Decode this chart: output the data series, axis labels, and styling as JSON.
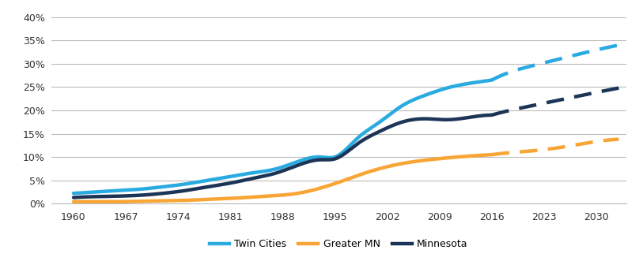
{
  "background_color": "#ffffff",
  "grid_color": "#bbbbbb",
  "ylim": [
    0,
    0.42
  ],
  "yticks": [
    0.0,
    0.05,
    0.1,
    0.15,
    0.2,
    0.25,
    0.3,
    0.35,
    0.4
  ],
  "ytick_labels": [
    "0%",
    "5%",
    "10%",
    "15%",
    "20%",
    "25%",
    "30%",
    "35%",
    "40%"
  ],
  "xticks": [
    1960,
    1967,
    1974,
    1981,
    1988,
    1995,
    2002,
    2009,
    2016,
    2023,
    2030
  ],
  "xlim": [
    1957,
    2034
  ],
  "series": {
    "twin_cities": {
      "label": "Twin Cities",
      "color": "#29ABE2",
      "linewidth": 3.2,
      "solid_x": [
        1960,
        1963,
        1966,
        1969,
        1972,
        1975,
        1978,
        1981,
        1984,
        1987,
        1990,
        1993,
        1995,
        1998,
        2001,
        2004,
        2007,
        2010,
        2013,
        2016
      ],
      "solid_y": [
        0.022,
        0.025,
        0.028,
        0.031,
        0.036,
        0.042,
        0.05,
        0.058,
        0.066,
        0.074,
        0.09,
        0.1,
        0.1,
        0.14,
        0.175,
        0.21,
        0.232,
        0.248,
        0.258,
        0.265
      ],
      "dash_x": [
        2016,
        2019,
        2022,
        2025,
        2028,
        2033
      ],
      "dash_y": [
        0.265,
        0.285,
        0.298,
        0.31,
        0.322,
        0.34
      ]
    },
    "greater_mn": {
      "label": "Greater MN",
      "color": "#F7A535",
      "linewidth": 3.2,
      "solid_x": [
        1960,
        1963,
        1966,
        1969,
        1972,
        1975,
        1978,
        1981,
        1984,
        1987,
        1990,
        1993,
        1995,
        1998,
        2001,
        2004,
        2007,
        2010,
        2013,
        2016
      ],
      "solid_y": [
        0.004,
        0.004,
        0.004,
        0.005,
        0.006,
        0.007,
        0.009,
        0.011,
        0.014,
        0.017,
        0.022,
        0.033,
        0.043,
        0.06,
        0.075,
        0.086,
        0.093,
        0.098,
        0.102,
        0.105
      ],
      "dash_x": [
        2016,
        2019,
        2022,
        2025,
        2028,
        2033
      ],
      "dash_y": [
        0.105,
        0.11,
        0.114,
        0.12,
        0.128,
        0.138
      ]
    },
    "minnesota": {
      "label": "Minnesota",
      "color": "#1C3557",
      "linewidth": 3.2,
      "solid_x": [
        1960,
        1963,
        1966,
        1969,
        1972,
        1975,
        1978,
        1981,
        1984,
        1987,
        1990,
        1993,
        1995,
        1998,
        2001,
        2004,
        2007,
        2010,
        2013,
        2016
      ],
      "solid_y": [
        0.013,
        0.015,
        0.016,
        0.018,
        0.022,
        0.028,
        0.036,
        0.044,
        0.054,
        0.065,
        0.082,
        0.094,
        0.096,
        0.128,
        0.155,
        0.175,
        0.182,
        0.18,
        0.185,
        0.19
      ],
      "dash_x": [
        2016,
        2019,
        2022,
        2025,
        2028,
        2033
      ],
      "dash_y": [
        0.19,
        0.202,
        0.212,
        0.222,
        0.232,
        0.248
      ]
    }
  },
  "legend": {
    "twin_cities_label": "Twin Cities",
    "greater_mn_label": "Greater MN",
    "minnesota_label": "Minnesota"
  }
}
